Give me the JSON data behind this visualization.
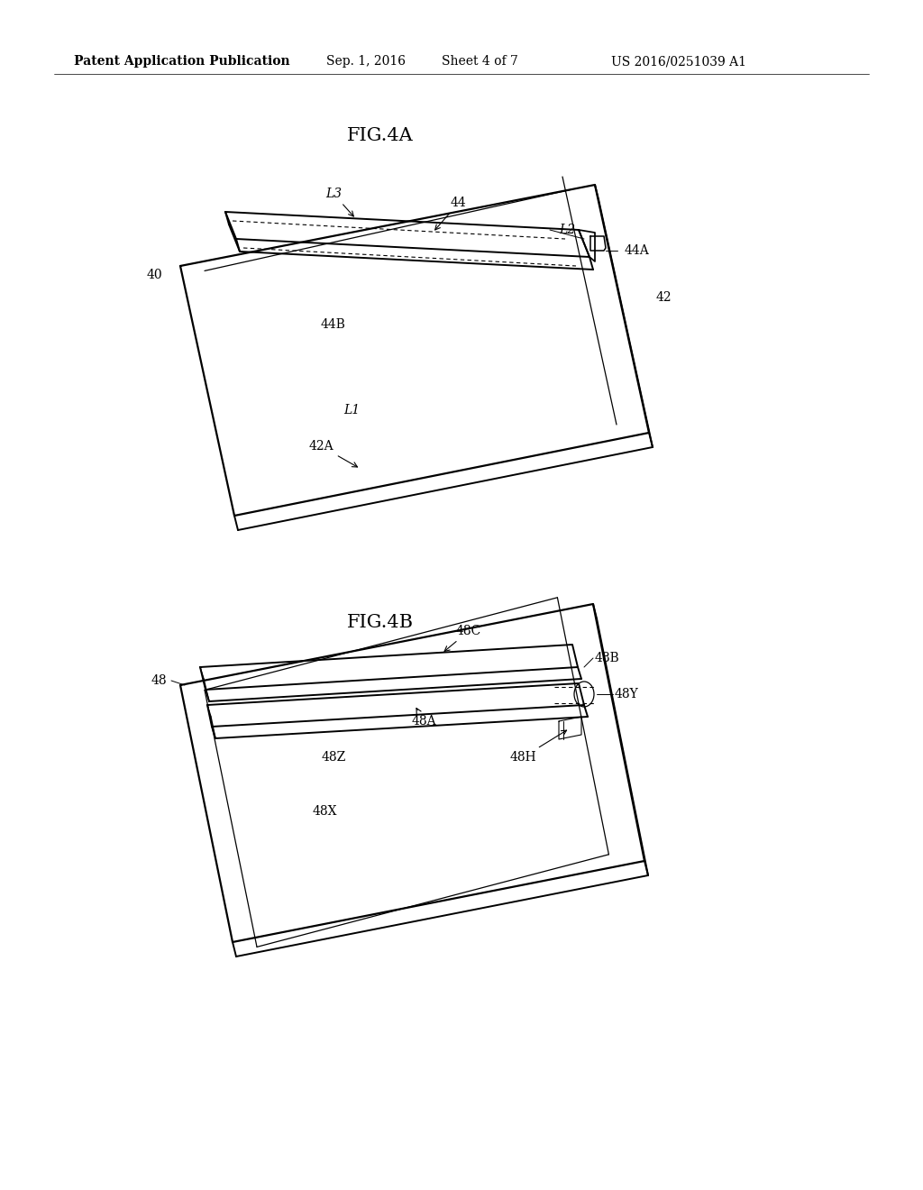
{
  "bg_color": "#ffffff",
  "header_text": "Patent Application Publication",
  "header_date": "Sep. 1, 2016",
  "header_sheet": "Sheet 4 of 7",
  "header_patent": "US 2016/0251039 A1",
  "fig4a_label": "FIG.4A",
  "fig4b_label": "FIG.4B",
  "line_color": "#000000",
  "line_width": 1.4
}
